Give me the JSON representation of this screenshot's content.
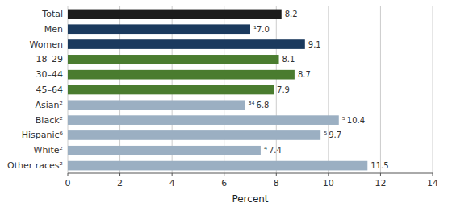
{
  "chart_data": {
    "type": "bar",
    "orientation": "horizontal",
    "categories": [
      "Total",
      "Men",
      "Women",
      "18–29",
      "30–44",
      "45–64",
      "Asian²",
      "Black²",
      "Hispanic⁶",
      "White²",
      "Other races²"
    ],
    "values": [
      8.2,
      7.0,
      9.1,
      8.1,
      8.7,
      7.9,
      6.8,
      10.4,
      9.7,
      7.4,
      11.5
    ],
    "value_labels": [
      "8.2",
      "¹7.0",
      "9.1",
      "8.1",
      "8.7",
      "7.9",
      "³⁴ 6.8",
      "⁵ 10.4",
      "⁵ 9.7",
      "⁴ 7.4",
      "11.5"
    ],
    "colors": [
      "#1c1c1c",
      "#1b3a5e",
      "#1b3a5e",
      "#4a7c2f",
      "#4a7c2f",
      "#4a7c2f",
      "#9bafc2",
      "#9bafc2",
      "#9bafc2",
      "#9bafc2",
      "#9bafc2"
    ],
    "data_labels": true,
    "xlim": [
      0,
      14
    ],
    "xticks": [
      0,
      2,
      4,
      6,
      8,
      10,
      12,
      14
    ],
    "xlabel": "Percent",
    "grid": true
  }
}
